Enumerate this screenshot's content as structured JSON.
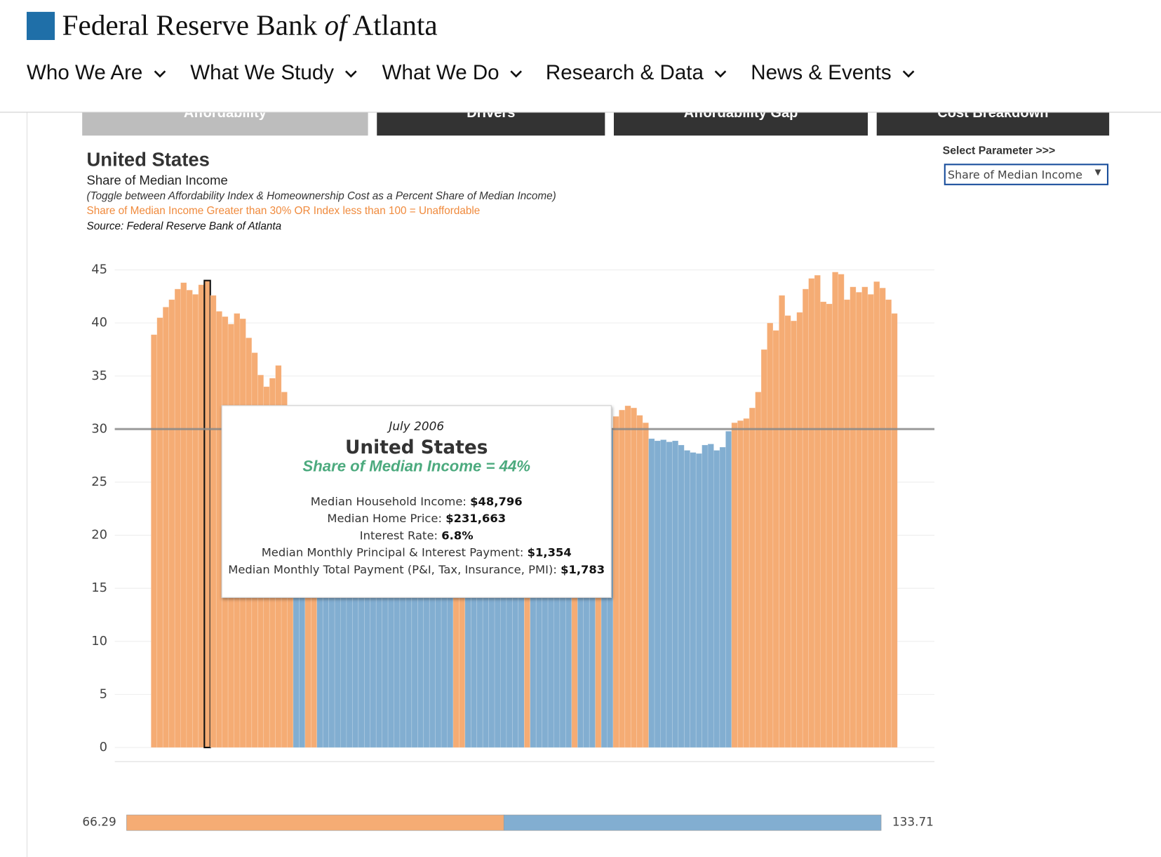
{
  "header": {
    "bank": "Federal Reserve Bank",
    "of": "of",
    "city": "Atlanta"
  },
  "nav": [
    "Who We Are",
    "What We Study",
    "What We Do",
    "Research & Data",
    "News & Events"
  ],
  "tabs": [
    "Affordability",
    "Drivers",
    "Affordability Gap",
    "Cost Breakdown"
  ],
  "panel": {
    "select_label": "Select Parameter >>>",
    "select_value": "Share of Median Income",
    "subtitle": "Share of Median Income",
    "note": "(Toggle between Affordability Index & Homeownership Cost as a Percent Share of Median Income)",
    "warning": "Share of Median Income Greater than 30% OR Index less than 100  = Unaffordable",
    "source": "Source: Federal Reserve Bank of Atlanta"
  },
  "tooltip": {
    "title": "United States",
    "metric": "Share of Median Income = 44%",
    "rows": [
      {
        "label": "Median Household Income:",
        "value": "$48,796"
      },
      {
        "label": "Median Home Price:",
        "value": "$231,663"
      },
      {
        "label": "Interest Rate:",
        "value": "6.8%"
      },
      {
        "label": "Median Monthly Principal & Interest Payment:",
        "value": "$1,354"
      },
      {
        "label": "Median Monthly Total Payment (P&I, Tax, Insurance, PMI):",
        "value": "$1,783"
      }
    ]
  },
  "legend": {
    "min": 66.29,
    "max": 133.71,
    "colors": [
      "#f5ac74",
      "#82aed1"
    ]
  },
  "chart_data": {
    "type": "bar",
    "title": "United States",
    "categories": [
      null,
      null,
      null,
      null,
      null,
      null,
      null,
      null,
      null,
      "July 2006",
      null,
      null,
      null,
      null,
      null,
      null,
      null,
      null,
      null,
      null,
      null,
      null,
      null,
      null,
      null,
      null,
      null,
      null,
      null,
      null,
      null,
      null,
      null,
      null,
      null,
      null,
      null,
      null,
      null,
      null,
      null,
      null,
      null,
      null,
      null,
      null,
      null,
      null,
      null,
      null,
      null,
      null,
      null,
      null,
      null,
      null,
      null,
      null,
      null,
      null,
      null,
      null,
      null,
      null,
      null,
      null,
      null,
      null,
      null,
      null,
      null,
      null,
      null,
      null,
      null,
      null,
      null,
      null,
      null,
      null,
      null,
      null,
      null,
      null,
      null,
      null,
      null,
      null,
      null,
      null,
      null,
      null,
      null,
      null,
      null,
      null,
      null,
      null,
      null,
      null,
      null,
      null,
      null,
      null,
      null,
      null,
      null,
      null,
      null,
      null,
      null,
      null,
      null,
      null,
      null,
      null,
      null,
      null,
      null,
      null,
      null,
      null,
      null,
      null,
      null,
      null
    ],
    "values": [
      38.9,
      40.5,
      41.5,
      42.2,
      43.2,
      43.8,
      43.1,
      42.7,
      43.6,
      44,
      42.6,
      41.1,
      40.6,
      39.9,
      40.9,
      40.4,
      38.6,
      37.2,
      35.1,
      34.0,
      34.8,
      36.0,
      33.5,
      32.0,
      29.2,
      28.6,
      30.3,
      30.4,
      29.5,
      28.8,
      28.2,
      27.5,
      26.8,
      26.0,
      25.2,
      24.5,
      23.9,
      23.4,
      22.9,
      22.5,
      22.2,
      22.0,
      22.1,
      22.4,
      22.8,
      23.3,
      24.0,
      25.0,
      26.2,
      27.5,
      28.6,
      30.2,
      30.1,
      29.2,
      28.5,
      28.0,
      27.8,
      27.6,
      27.7,
      28.0,
      28.4,
      28.9,
      29.4,
      30.1,
      29.6,
      29.3,
      29.0,
      28.8,
      28.9,
      29.2,
      29.5,
      30.1,
      29.7,
      29.6,
      29.8,
      30.1,
      29.8,
      29.9,
      31.2,
      31.8,
      32.2,
      32.0,
      31.3,
      30.6,
      29.1,
      28.9,
      29.0,
      28.8,
      28.9,
      28.5,
      28.0,
      27.8,
      27.7,
      28.5,
      28.6,
      28.0,
      28.3,
      29.8,
      30.6,
      30.8,
      31.0,
      32.0,
      33.5,
      37.5,
      40.0,
      39.3,
      42.6,
      40.7,
      40.2,
      41.0,
      43.2,
      44.2,
      44.5,
      42.0,
      41.8,
      44.8,
      44.6,
      42.2,
      43.4,
      42.9,
      43.4,
      42.7,
      43.9,
      43.3,
      42.2,
      40.9
    ],
    "threshold": 30,
    "color_above": "#f5ac74",
    "color_below": "#82aed1",
    "ylim": [
      -0.7,
      46
    ],
    "yticks": [
      0,
      5,
      10,
      15,
      20,
      25,
      30,
      35,
      40,
      45
    ],
    "grid": true
  }
}
